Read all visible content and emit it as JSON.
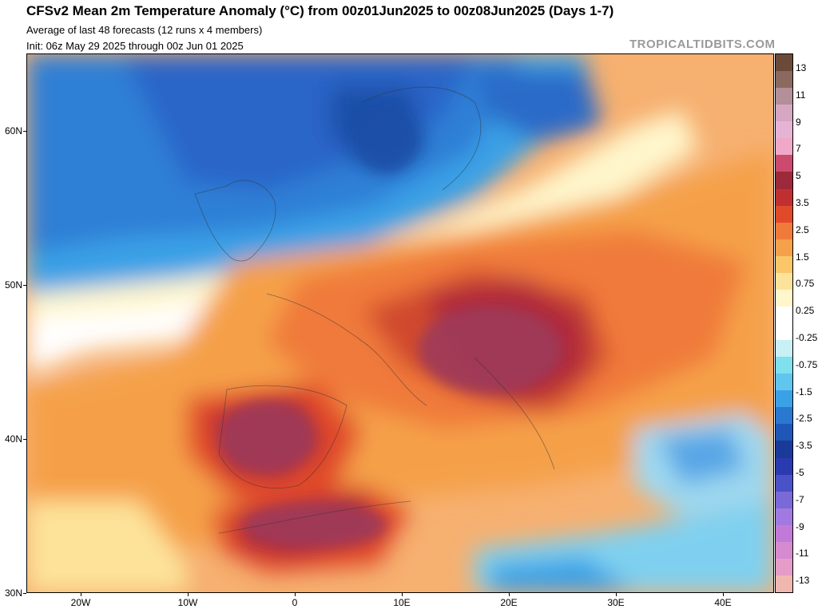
{
  "header": {
    "title": "CFSv2 Mean 2m Temperature Anomaly (°C) from 00z01Jun2025 to 00z08Jun2025 (Days 1-7)",
    "subtitle": "Average of last 48 forecasts (12 runs x 4 members)",
    "init": "Init: 06z May 29 2025 through 00z Jun 01 2025",
    "brand": "TROPICALTIDBITS.COM"
  },
  "map": {
    "lat_labels": [
      "60N",
      "50N",
      "40N",
      "30N"
    ],
    "lon_labels": [
      "20W",
      "10W",
      "0",
      "10E",
      "20E",
      "30E",
      "40E"
    ],
    "ocean_color": "#2f73c8",
    "anomaly_fields": {
      "cold_north_atlantic": "#2e6fcb",
      "scandinavia_cold": "#2a5fbf",
      "neutral_band": "#ffffff",
      "warm_europe": "#f08a4a",
      "hot_central_europe": "#c23c3c",
      "extreme_balkans_iberia": "#9e3a5a",
      "turkey_cold": "#56a6e6"
    }
  },
  "colorbar": {
    "labels": [
      "13",
      "11",
      "9",
      "7",
      "5",
      "3.5",
      "2.5",
      "1.5",
      "0.75",
      "0.25",
      "-0.25",
      "-0.75",
      "-1.5",
      "-2.5",
      "-3.5",
      "-5",
      "-7",
      "-9",
      "-11",
      "-13"
    ],
    "colors": [
      "#6b4a3a",
      "#8a6a5e",
      "#b38f99",
      "#d6a7c2",
      "#e7b3d5",
      "#f0a8c8",
      "#cc4a6e",
      "#9c2a3a",
      "#c03030",
      "#e04a2a",
      "#f07a3a",
      "#f5a04a",
      "#fbc66a",
      "#fde39a",
      "#fff6cc",
      "#ffffff",
      "#ffffff",
      "#c8f0f5",
      "#7fe0ee",
      "#60c6ee",
      "#3aa1e6",
      "#2a78d0",
      "#1f57b8",
      "#1a3a9a",
      "#2a3ab0",
      "#4a52c8",
      "#7a6ad8",
      "#a07ae0",
      "#c27ad8",
      "#d68ad0",
      "#e59cc8",
      "#f0b7b0"
    ]
  }
}
